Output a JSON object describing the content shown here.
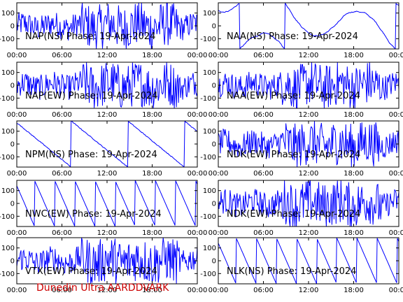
{
  "colors": {
    "trace": "#0000ff",
    "frame": "#000000",
    "footer": "#cc0000",
    "background": "#ffffff"
  },
  "footer": "Dunedin Ultra AARDDVARK",
  "chart_data": [
    {
      "type": "line",
      "title": "NAP(NS) Phase: 19-Apr-2024",
      "x_ticks": [
        "00:00",
        "06:00",
        "12:00",
        "18:00",
        "00:00"
      ],
      "y_ticks": [
        "100",
        "0",
        "-100"
      ],
      "ylim": [
        -180,
        180
      ],
      "signal": "noisy-saturated"
    },
    {
      "type": "line",
      "title": "NAA(NS) Phase: 19-Apr-2024",
      "x_ticks": [
        "00:00",
        "06:00",
        "12:00",
        "18:00",
        "00:00"
      ],
      "y_ticks": [
        "100",
        "0",
        "-100"
      ],
      "ylim": [
        -180,
        180
      ],
      "signal": "drifting-with-wraps"
    },
    {
      "type": "line",
      "title": "NAP(EW) Phase: 19-Apr-2024",
      "x_ticks": [
        "00:00",
        "06:00",
        "12:00",
        "18:00",
        "00:00"
      ],
      "y_ticks": [
        "100",
        "0",
        "-100"
      ],
      "ylim": [
        -180,
        180
      ],
      "signal": "noisy-saturated"
    },
    {
      "type": "line",
      "title": "NAA(EW) Phase: 19-Apr-2024",
      "x_ticks": [
        "00:00",
        "06:00",
        "12:00",
        "18:00",
        "00:00"
      ],
      "y_ticks": [
        "100",
        "0",
        "-100"
      ],
      "ylim": [
        -180,
        180
      ],
      "signal": "noisy-saturated"
    },
    {
      "type": "line",
      "title": "NPM(NS) Phase: 19-Apr-2024",
      "x_ticks": [
        "00:00",
        "06:00",
        "12:00",
        "18:00",
        "00:00"
      ],
      "y_ticks": [
        "100",
        "0",
        "-100"
      ],
      "ylim": [
        -180,
        180
      ],
      "signal": "slow-drift"
    },
    {
      "type": "line",
      "title": "NDK(EW) Phase: 19-Apr-2024",
      "x_ticks": [
        "00:00",
        "06:00",
        "12:00",
        "18:00",
        "00:00"
      ],
      "y_ticks": [
        "100",
        "0",
        "-100"
      ],
      "ylim": [
        -180,
        180
      ],
      "signal": "noisy-saturated"
    },
    {
      "type": "line",
      "title": "NWC(EW) Phase: 19-Apr-2024",
      "x_ticks": [
        "00:00",
        "06:00",
        "12:00",
        "18:00",
        "00:00"
      ],
      "y_ticks": [
        "100",
        "0",
        "-100"
      ],
      "ylim": [
        -180,
        180
      ],
      "signal": "sawtooth"
    },
    {
      "type": "line",
      "title": "NDK(EW) Phase: 19-Apr-2024",
      "x_ticks": [
        "00:00",
        "06:00",
        "12:00",
        "18:00",
        "00:00"
      ],
      "y_ticks": [
        "100",
        "0",
        "-100"
      ],
      "ylim": [
        -180,
        180
      ],
      "signal": "noisy-saturated"
    },
    {
      "type": "line",
      "title": "VTX(EW) Phase: 19-Apr-2024",
      "x_ticks": [
        "00:00",
        "06:00",
        "12:00",
        "18:00",
        "00:00"
      ],
      "y_ticks": [
        "100",
        "0",
        "-100"
      ],
      "ylim": [
        -180,
        180
      ],
      "signal": "noisy-saturated"
    },
    {
      "type": "line",
      "title": "NLK(NS) Phase: 19-Apr-2024",
      "x_ticks": [
        "00:00",
        "06:00",
        "12:00",
        "18:00",
        "00:00"
      ],
      "y_ticks": [
        "100",
        "0",
        "-100"
      ],
      "ylim": [
        -180,
        180
      ],
      "signal": "sawtooth"
    }
  ]
}
